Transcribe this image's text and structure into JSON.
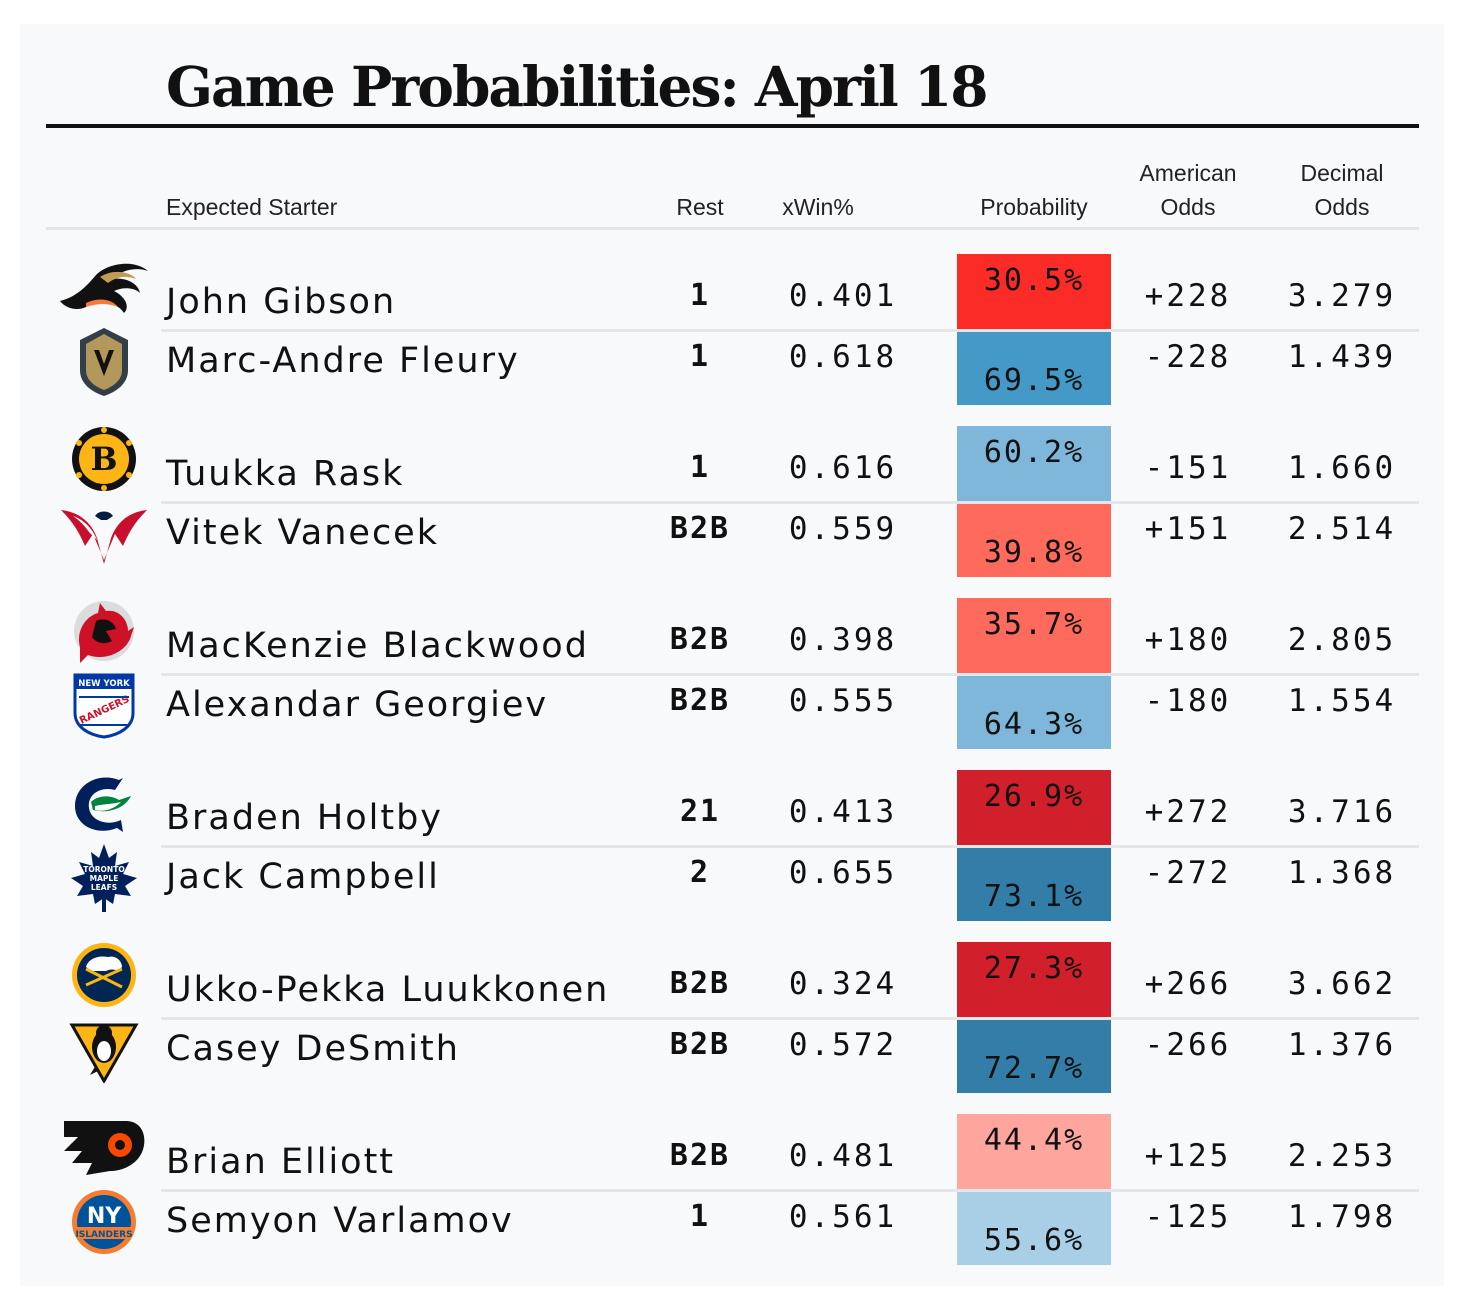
{
  "title": "Game Probabilities: April 18",
  "headers": {
    "starter": "Expected Starter",
    "rest": "Rest",
    "xwin": "xWin%",
    "probability": "Probability",
    "american": "American Odds",
    "decimal": "Decimal Odds"
  },
  "games": [
    {
      "top": {
        "team_logo": "anaheim-ducks-logo-icon",
        "name": "John Gibson",
        "rest": "1",
        "xwin": "0.401",
        "prob": "30.5%",
        "american": "+228",
        "decimal": "3.279",
        "color": "#fb2c27"
      },
      "bottom": {
        "team_logo": "vegas-golden-knights-logo-icon",
        "name": "Marc-Andre Fleury",
        "rest": "1",
        "xwin": "0.618",
        "prob": "69.5%",
        "american": "-228",
        "decimal": "1.439",
        "color": "#4499c7"
      }
    },
    {
      "top": {
        "team_logo": "boston-bruins-logo-icon",
        "name": "Tuukka Rask",
        "rest": "1",
        "xwin": "0.616",
        "prob": "60.2%",
        "american": "-151",
        "decimal": "1.660",
        "color": "#7fb7da"
      },
      "bottom": {
        "team_logo": "washington-capitals-logo-icon",
        "name": "Vitek Vanecek",
        "rest": "B2B",
        "xwin": "0.559",
        "prob": "39.8%",
        "american": "+151",
        "decimal": "2.514",
        "color": "#fe6b5c"
      }
    },
    {
      "top": {
        "team_logo": "new-jersey-devils-logo-icon",
        "name": "MacKenzie Blackwood",
        "rest": "B2B",
        "xwin": "0.398",
        "prob": "35.7%",
        "american": "+180",
        "decimal": "2.805",
        "color": "#fe6b5c"
      },
      "bottom": {
        "team_logo": "new-york-rangers-logo-icon",
        "name": "Alexandar Georgiev",
        "rest": "B2B",
        "xwin": "0.555",
        "prob": "64.3%",
        "american": "-180",
        "decimal": "1.554",
        "color": "#7fb7da"
      }
    },
    {
      "top": {
        "team_logo": "vancouver-canucks-logo-icon",
        "name": "Braden Holtby",
        "rest": "21",
        "xwin": "0.413",
        "prob": "26.9%",
        "american": "+272",
        "decimal": "3.716",
        "color": "#d1202b"
      },
      "bottom": {
        "team_logo": "toronto-maple-leafs-logo-icon",
        "name": "Jack Campbell",
        "rest": "2",
        "xwin": "0.655",
        "prob": "73.1%",
        "american": "-272",
        "decimal": "1.368",
        "color": "#337ea8"
      }
    },
    {
      "top": {
        "team_logo": "buffalo-sabres-logo-icon",
        "name": "Ukko-Pekka Luukkonen",
        "rest": "B2B",
        "xwin": "0.324",
        "prob": "27.3%",
        "american": "+266",
        "decimal": "3.662",
        "color": "#d1202b"
      },
      "bottom": {
        "team_logo": "pittsburgh-penguins-logo-icon",
        "name": "Casey DeSmith",
        "rest": "B2B",
        "xwin": "0.572",
        "prob": "72.7%",
        "american": "-266",
        "decimal": "1.376",
        "color": "#337ea8"
      }
    },
    {
      "top": {
        "team_logo": "philadelphia-flyers-logo-icon",
        "name": "Brian Elliott",
        "rest": "B2B",
        "xwin": "0.481",
        "prob": "44.4%",
        "american": "+125",
        "decimal": "2.253",
        "color": "#fea59d"
      },
      "bottom": {
        "team_logo": "new-york-islanders-logo-icon",
        "name": "Semyon Varlamov",
        "rest": "1",
        "xwin": "0.561",
        "prob": "55.6%",
        "american": "-125",
        "decimal": "1.798",
        "color": "#a9cfe6"
      }
    }
  ],
  "logo_text": {
    "rangers_line1": "NEW YORK",
    "rangers_line2": "RANGERS",
    "leafs_line1": "TORONTO",
    "leafs_line2": "MAPLE",
    "leafs_line3": "LEAFS",
    "islanders_mark": "NY",
    "islanders_word": "ISLANDERS"
  }
}
